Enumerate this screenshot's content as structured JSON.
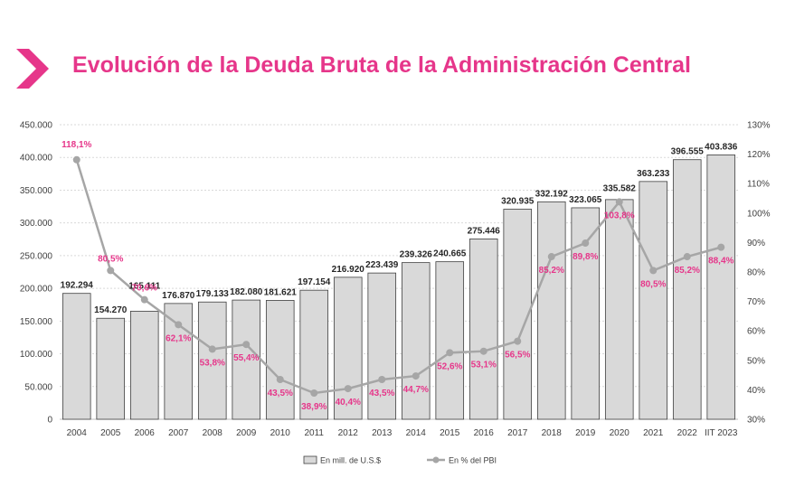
{
  "title": "Evolución de la Deuda Bruta de la Administración Central",
  "colors": {
    "accent": "#e6368a",
    "bar_fill": "#d9d9d9",
    "bar_stroke": "#3f3f3f",
    "line": "#a6a6a6"
  },
  "chart_data": {
    "type": "bar",
    "categories": [
      "2004",
      "2005",
      "2006",
      "2007",
      "2008",
      "2009",
      "2010",
      "2011",
      "2012",
      "2013",
      "2014",
      "2015",
      "2016",
      "2017",
      "2018",
      "2019",
      "2020",
      "2021",
      "2022",
      "IIT 2023"
    ],
    "series": [
      {
        "name": "En mill. de U.S.$",
        "type": "bar",
        "axis": "left",
        "values": [
          192294,
          154270,
          165111,
          176870,
          179133,
          182080,
          181621,
          197154,
          216920,
          223439,
          239326,
          240665,
          275446,
          320935,
          332192,
          323065,
          335582,
          363233,
          396555,
          403836
        ],
        "labels": [
          "192.294",
          "154.270",
          "165.111",
          "176.870",
          "179.133",
          "182.080",
          "181.621",
          "197.154",
          "216.920",
          "223.439",
          "239.326",
          "240.665",
          "275.446",
          "320.935",
          "332.192",
          "323.065",
          "335.582",
          "363.233",
          "396.555",
          "403.836"
        ]
      },
      {
        "name": "En % del PBI",
        "type": "line",
        "axis": "right",
        "values": [
          118.1,
          80.5,
          70.6,
          62.1,
          53.8,
          55.4,
          43.5,
          38.9,
          40.4,
          43.5,
          44.7,
          52.6,
          53.1,
          56.5,
          85.2,
          89.8,
          103.8,
          80.5,
          85.2,
          88.4
        ],
        "labels": [
          "118,1%",
          "80,5%",
          "70,6%",
          "62,1%",
          "53,8%",
          "55,4%",
          "43,5%",
          "38,9%",
          "40,4%",
          "43,5%",
          "44,7%",
          "52,6%",
          "53,1%",
          "56,5%",
          "85,2%",
          "89,8%",
          "103,8%",
          "80,5%",
          "85,2%",
          "88,4%"
        ]
      }
    ],
    "ylim": [
      0,
      450000
    ],
    "y_ticks": [
      0,
      50000,
      100000,
      150000,
      200000,
      250000,
      300000,
      350000,
      400000,
      450000
    ],
    "y_tick_labels": [
      "0",
      "50.000",
      "100.000",
      "150.000",
      "200.000",
      "250.000",
      "300.000",
      "350.000",
      "400.000",
      "450.000"
    ],
    "y2lim": [
      30,
      130
    ],
    "y2_ticks": [
      30,
      40,
      50,
      60,
      70,
      80,
      90,
      100,
      110,
      120,
      130
    ],
    "y2_tick_labels": [
      "30%",
      "40%",
      "50%",
      "60%",
      "70%",
      "80%",
      "90%",
      "100%",
      "110%",
      "120%",
      "130%"
    ],
    "grid": true,
    "legend_position": "bottom"
  }
}
